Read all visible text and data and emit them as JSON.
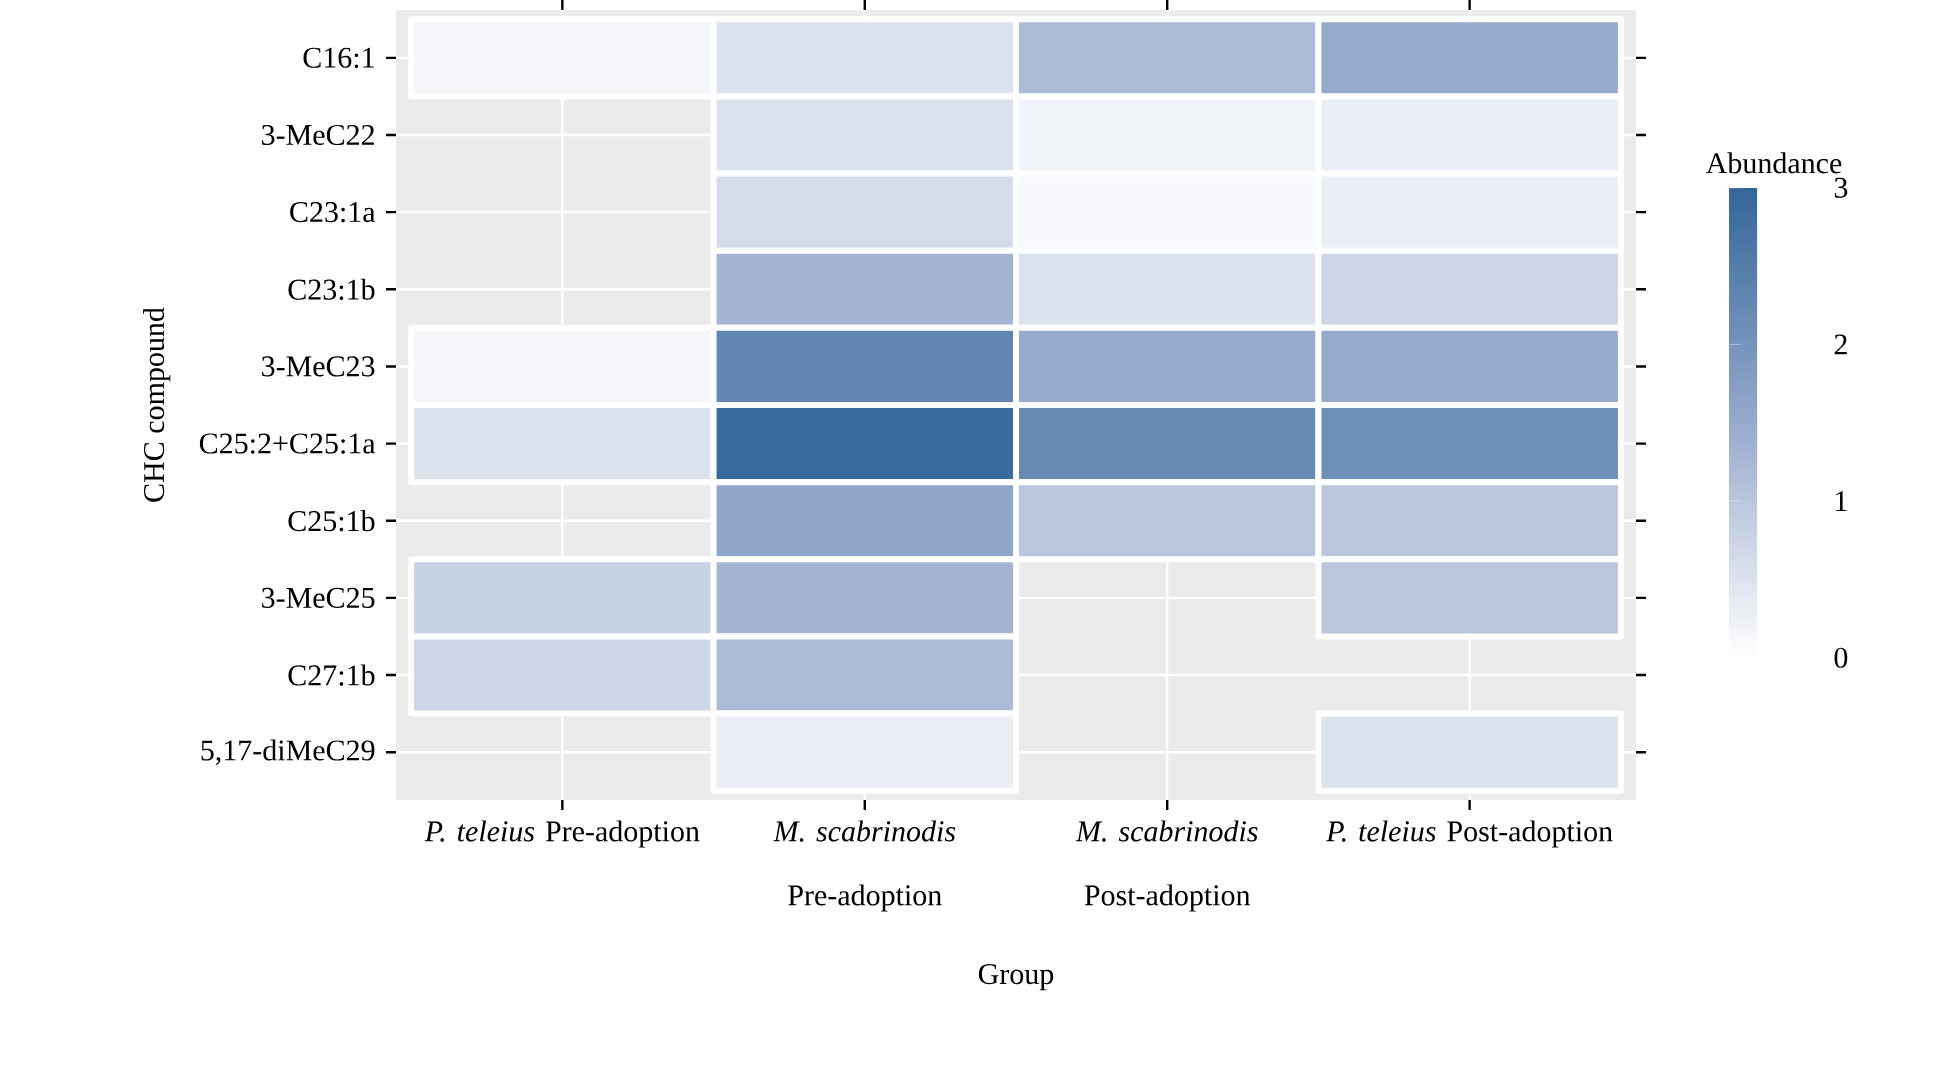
{
  "chart_data": {
    "type": "heatmap",
    "xlabel": "Group",
    "ylabel": "CHC compound",
    "clabel": "Abundance",
    "categories": [
      "*P. teleius* Pre-adoption",
      "*M. scabrinodis* Pre-adoption",
      "*M. scabrinodis* Post-adoption",
      "*P. teleius* Post-adoption"
    ],
    "y_categories": [
      "C16:1",
      "3-MeC22",
      "C23:1a",
      "C23:1b",
      "3-MeC23",
      "C25:2+C25:1a",
      "C25:1b",
      "3-MeC25",
      "C27:1b",
      "5,17-diMeC29"
    ],
    "cells": [
      [
        0.15,
        0.5,
        1.2,
        1.5
      ],
      [
        null,
        0.5,
        0.2,
        0.3
      ],
      [
        null,
        0.6,
        0.1,
        0.3
      ],
      [
        null,
        1.3,
        0.5,
        0.7
      ],
      [
        0.15,
        2.3,
        1.5,
        1.5
      ],
      [
        0.5,
        2.9,
        2.2,
        2.1
      ],
      [
        null,
        1.6,
        1.0,
        1.0
      ],
      [
        0.8,
        1.3,
        null,
        1.0
      ],
      [
        0.7,
        1.2,
        null,
        null
      ],
      [
        null,
        0.3,
        null,
        0.5
      ]
    ],
    "clim": [
      0,
      3
    ],
    "cticks": [
      0,
      1,
      2,
      3
    ],
    "grid": true
  }
}
